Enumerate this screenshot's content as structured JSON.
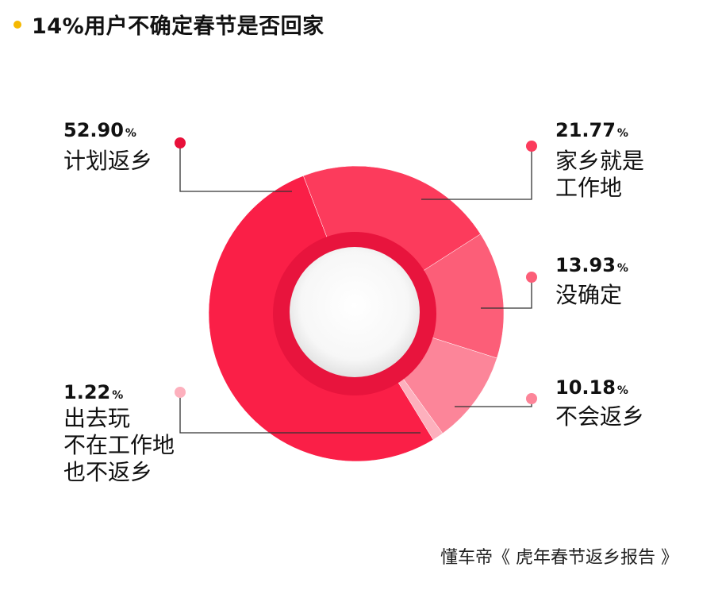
{
  "title": "14%用户不确定春节是否回家",
  "source": "懂车帝《 虎年春节返乡报告 》",
  "percent_unit": "%",
  "chart_data": {
    "type": "pie",
    "title": "14%用户不确定春节是否回家",
    "unit": "%",
    "slices": [
      {
        "label": "计划返乡",
        "label_lines": [
          "计划返乡"
        ],
        "value": 52.9,
        "value_text": "52.90",
        "color": "#fa1f47"
      },
      {
        "label": "家乡就是工作地",
        "label_lines": [
          "家乡就是",
          "工作地"
        ],
        "value": 21.77,
        "value_text": "21.77",
        "color": "#fc3b5c"
      },
      {
        "label": "没确定",
        "label_lines": [
          "没确定"
        ],
        "value": 13.93,
        "value_text": "13.93",
        "color": "#fc5e78"
      },
      {
        "label": "不会返乡",
        "label_lines": [
          "不会返乡"
        ],
        "value": 10.18,
        "value_text": "10.18",
        "color": "#fc8599"
      },
      {
        "label": "出去玩不在工作地也不返乡",
        "label_lines": [
          "出去玩",
          "不在工作地",
          "也不返乡"
        ],
        "value": 1.22,
        "value_text": "1.22",
        "color": "#fdb0bd"
      }
    ]
  }
}
